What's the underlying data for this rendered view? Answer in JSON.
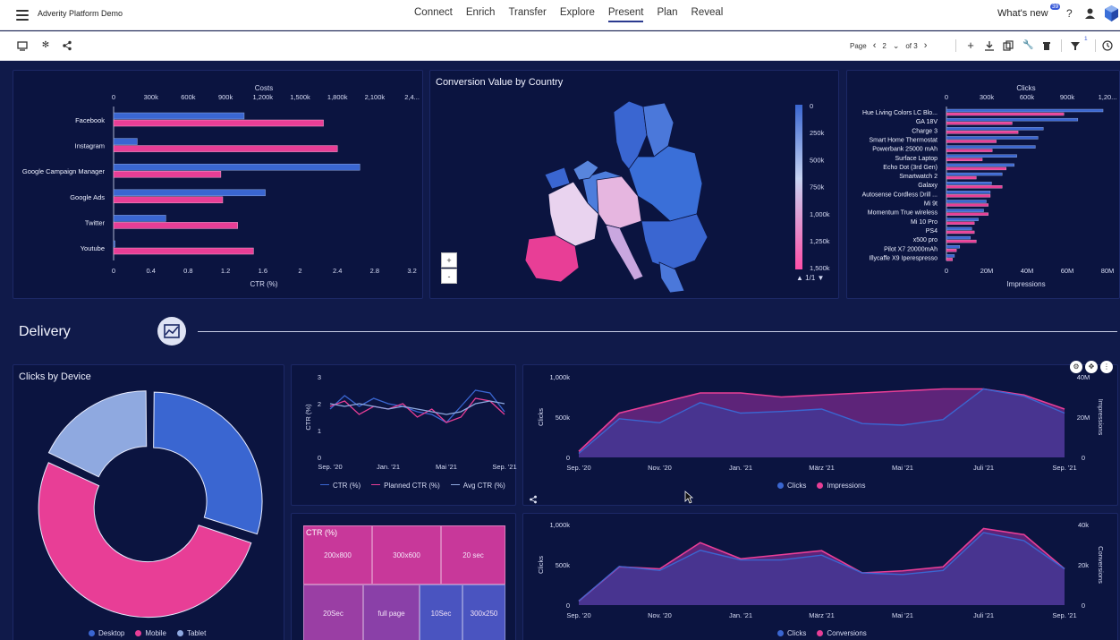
{
  "app": {
    "title": "Adverity Platform Demo"
  },
  "nav": {
    "items": [
      "Connect",
      "Enrich",
      "Transfer",
      "Explore",
      "Present",
      "Plan",
      "Reveal"
    ],
    "active": "Present"
  },
  "header": {
    "whats_new": "What's new",
    "whats_new_count": "39",
    "help": "?"
  },
  "toolbar": {
    "page_label": "Page",
    "page_current": "2",
    "page_total": "of 3",
    "filter_count": "1"
  },
  "icons": [
    "menu-icon",
    "monitor-icon",
    "snowflake-icon",
    "share-icon",
    "chevron-left-icon",
    "chevron-right-icon",
    "chevron-down-icon",
    "plus-icon",
    "download-icon",
    "copy-icon",
    "wrench-icon",
    "delete-icon",
    "filter-icon",
    "clock-icon",
    "user-icon",
    "help-icon",
    "settings-icon",
    "move-icon",
    "more-icon",
    "trend-icon",
    "cursor-icon"
  ],
  "section": {
    "title": "Delivery"
  },
  "colors": {
    "blue": "#3a66d1",
    "pink": "#e83e96",
    "background": "#101a4a",
    "card": "#0b1440"
  },
  "cost_ctr_chart": {
    "top_axis_title": "Costs",
    "top_ticks": [
      "0",
      "300k",
      "600k",
      "900k",
      "1,200k",
      "1,500k",
      "1,800k",
      "2,100k",
      "2,4..."
    ],
    "bottom_ticks": [
      "0",
      "0.4",
      "0.8",
      "1.2",
      "1.6",
      "2",
      "2.4",
      "2.8",
      "3.2"
    ],
    "bottom_axis_title": "CTR (%)"
  },
  "map": {
    "title": "Conversion Value by Country",
    "legend_ticks": [
      "0",
      "250k",
      "500k",
      "750k",
      "1,000k",
      "1,250k",
      "1,500k"
    ],
    "page_indicator": "1/1",
    "zoom_in": "+",
    "zoom_out": "-"
  },
  "products_chart": {
    "top_axis_title": "Clicks",
    "top_ticks": [
      "0",
      "300k",
      "600k",
      "900k",
      "1,20..."
    ],
    "bottom_ticks": [
      "0",
      "20M",
      "40M",
      "60M",
      "80M"
    ],
    "bottom_axis_title": "Impressions"
  },
  "device_chart": {
    "title": "Clicks by Device",
    "legend": [
      "Desktop",
      "Mobile",
      "Tablet"
    ]
  },
  "ctr_line_chart": {
    "y_title": "CTR (%)",
    "y_ticks": [
      "0",
      "1",
      "2",
      "3"
    ],
    "x_ticks": [
      "Sep. '20",
      "Jan. '21",
      "Mai '21",
      "Sep. '21"
    ],
    "legend": [
      "CTR (%)",
      "Planned CTR (%)",
      "Avg CTR (%)"
    ]
  },
  "clicks_impr_chart": {
    "y_title": "Clicks",
    "y2_title": "Impressions",
    "y_ticks": [
      "0",
      "500k",
      "1,000k"
    ],
    "y2_ticks": [
      "0",
      "20M",
      "40M"
    ],
    "x_ticks": [
      "Sep. '20",
      "Nov. '20",
      "Jan. '21",
      "März '21",
      "Mai '21",
      "Juli '21",
      "Sep. '21"
    ],
    "legend": [
      "Clicks",
      "Impressions"
    ]
  },
  "treemap": {
    "title": "CTR (%)",
    "cells": [
      "200x800",
      "300x600",
      "20 sec",
      "20Sec",
      "full page",
      "10Sec",
      "300x250"
    ]
  },
  "clicks_conv_chart": {
    "y_title": "Clicks",
    "y2_title": "Conversions",
    "y_ticks": [
      "0",
      "500k",
      "1,000k"
    ],
    "y2_ticks": [
      "0",
      "20k",
      "40k"
    ],
    "x_ticks": [
      "Sep. '20",
      "Nov. '20",
      "Jan. '21",
      "März '21",
      "Mai '21",
      "Juli '21",
      "Sep. '21"
    ],
    "legend": [
      "Clicks",
      "Conversions"
    ]
  },
  "chart_data": [
    {
      "type": "bar",
      "categories": [
        "Facebook",
        "Instagram",
        "Google Campaign Manager",
        "Google Ads",
        "Twitter",
        "Youtube"
      ],
      "series": [
        {
          "name": "Costs",
          "values": [
            1050000,
            190000,
            1980000,
            1220000,
            420000,
            10000
          ]
        },
        {
          "name": "CTR (%)",
          "values": [
            2.25,
            2.4,
            1.15,
            1.17,
            1.33,
            1.5
          ]
        }
      ],
      "x_top_range": [
        0,
        2400000
      ],
      "x_bottom_range": [
        0,
        3.2
      ]
    },
    {
      "type": "bar",
      "categories": [
        "Hue Living Colors LC Blo...",
        "GA 18V",
        "Charge 3",
        "Smart Home Thermostat",
        "Powerbank 25000 mAh",
        "Surface Laptop",
        "Echo Dot (3rd Gen)",
        "Smartwatch 2",
        "Galaxy",
        "Autosense Cordless Drill ...",
        "Mi 9t",
        "Momentum True wireless",
        "Mi 10 Pro",
        "PS4",
        "x500 pro",
        "Pilot X7 20000mAh",
        "Illycaffe X9 Iperespresso"
      ],
      "series": [
        {
          "name": "Clicks",
          "values": [
            1180000,
            990000,
            730000,
            690000,
            670000,
            530000,
            510000,
            420000,
            340000,
            330000,
            300000,
            280000,
            240000,
            190000,
            180000,
            100000,
            60000
          ]
        },
        {
          "name": "Impressions",
          "values": [
            59000000,
            33000000,
            36000000,
            25000000,
            23000000,
            18000000,
            30000000,
            15000000,
            28000000,
            22000000,
            21000000,
            21000000,
            14000000,
            14000000,
            15000000,
            5000000,
            3000000
          ]
        }
      ],
      "x_top_range": [
        0,
        1200000
      ],
      "x_bottom_range": [
        0,
        80000000
      ]
    },
    {
      "type": "pie",
      "categories": [
        "Desktop",
        "Mobile",
        "Tablet"
      ],
      "values": [
        30,
        52,
        18
      ]
    },
    {
      "type": "line",
      "x": [
        "Sep. '20",
        "Okt. '20",
        "Nov. '20",
        "Dez. '20",
        "Jan. '21",
        "Feb. '21",
        "März '21",
        "Apr. '21",
        "Mai '21",
        "Juni '21",
        "Juli '21",
        "Aug. '21",
        "Sep. '21"
      ],
      "series": [
        {
          "name": "CTR (%)",
          "values": [
            1.8,
            2.3,
            1.9,
            2.2,
            2.0,
            1.9,
            1.7,
            1.6,
            1.3,
            1.9,
            2.5,
            2.4,
            1.7
          ]
        },
        {
          "name": "Planned CTR (%)",
          "values": [
            1.9,
            2.1,
            1.6,
            1.9,
            1.8,
            2.0,
            1.5,
            1.8,
            1.3,
            1.5,
            2.2,
            2.1,
            1.6
          ]
        },
        {
          "name": "Avg CTR (%)",
          "values": [
            2.0,
            1.9,
            2.0,
            1.9,
            1.8,
            1.9,
            1.8,
            1.7,
            1.6,
            1.7,
            2.0,
            2.1,
            2.0
          ]
        }
      ],
      "ylim": [
        0,
        3
      ]
    },
    {
      "type": "area",
      "x": [
        "Sep. '20",
        "Okt. '20",
        "Nov. '20",
        "Dez. '20",
        "Jan. '21",
        "Feb. '21",
        "März '21",
        "Apr. '21",
        "Mai '21",
        "Juni '21",
        "Juli '21",
        "Aug. '21",
        "Sep. '21"
      ],
      "series": [
        {
          "name": "Clicks",
          "values": [
            50000,
            480000,
            430000,
            680000,
            550000,
            570000,
            600000,
            420000,
            400000,
            470000,
            850000,
            760000,
            550000
          ]
        },
        {
          "name": "Impressions",
          "values": [
            3000000,
            22000000,
            27000000,
            32000000,
            32000000,
            30000000,
            31000000,
            32000000,
            33000000,
            34000000,
            34000000,
            31000000,
            24000000
          ]
        }
      ],
      "ylim": [
        0,
        1000000
      ],
      "y2lim": [
        0,
        40000
      ]
    },
    {
      "type": "area",
      "x": [
        "Sep. '20",
        "Okt. '20",
        "Nov. '20",
        "Dez. '20",
        "Jan. '21",
        "Feb. '21",
        "März '21",
        "Apr. '21",
        "Mai '21",
        "Juni '21",
        "Juli '21",
        "Aug. '21",
        "Sep. '21"
      ],
      "series": [
        {
          "name": "Clicks",
          "values": [
            50000,
            480000,
            430000,
            680000,
            560000,
            560000,
            620000,
            400000,
            380000,
            430000,
            900000,
            800000,
            450000
          ]
        },
        {
          "name": "Conversions",
          "values": [
            2000,
            19000,
            18000,
            31000,
            23000,
            25000,
            27000,
            16000,
            17000,
            19000,
            38000,
            35000,
            18000
          ]
        }
      ],
      "ylim": [
        0,
        1000000
      ],
      "y2lim": [
        0,
        40000
      ]
    },
    {
      "type": "heatmap",
      "title": "CTR (%)",
      "categories": [
        "200x800",
        "300x600",
        "20 sec",
        "20Sec",
        "full page",
        "10Sec",
        "300x250"
      ]
    }
  ]
}
